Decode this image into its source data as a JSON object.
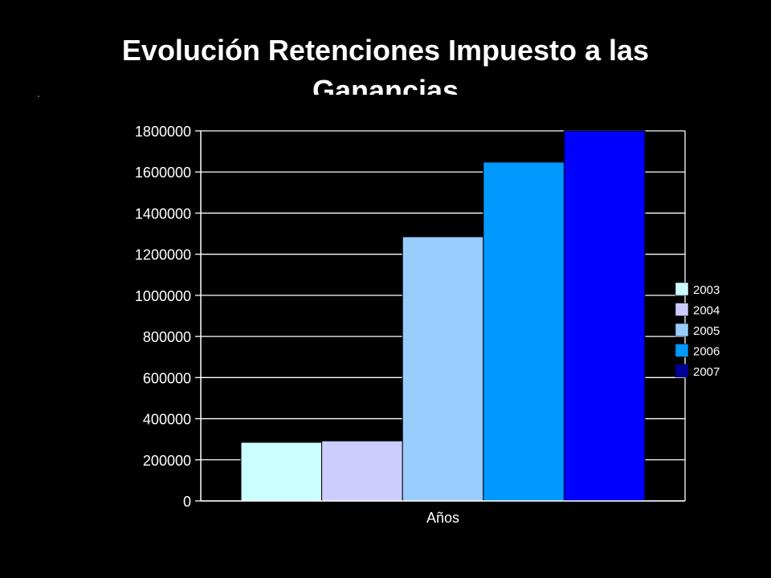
{
  "slide": {
    "title": "Evolución Retenciones Impuesto a las Ganancias"
  },
  "chart_data": {
    "type": "bar",
    "title": "Evolución Retenciones Impuesto a las Ganancias",
    "xlabel": "Años",
    "ylabel": "",
    "categories": [
      "Años"
    ],
    "series": [
      {
        "name": "2003",
        "values": [
          285000
        ],
        "color": "#CCFFFF"
      },
      {
        "name": "2004",
        "values": [
          292000
        ],
        "color": "#CCCCFF"
      },
      {
        "name": "2005",
        "values": [
          1285000
        ],
        "color": "#99CCFF"
      },
      {
        "name": "2006",
        "values": [
          1648000
        ],
        "color": "#0099FF"
      },
      {
        "name": "2007",
        "values": [
          1800000
        ],
        "color": "#0000FF"
      }
    ],
    "legend_colors": [
      "#CCFFFF",
      "#CCCCFF",
      "#99CCFF",
      "#0099FF",
      "#000099"
    ],
    "ylim": [
      0,
      1800000
    ],
    "yticks": [
      "0",
      "200000",
      "400000",
      "600000",
      "800000",
      "1000000",
      "1200000",
      "1400000",
      "1600000",
      "1800000"
    ],
    "grid": true,
    "legend_position": "right",
    "background": "#000000",
    "text_color": "#FFFFFF"
  }
}
